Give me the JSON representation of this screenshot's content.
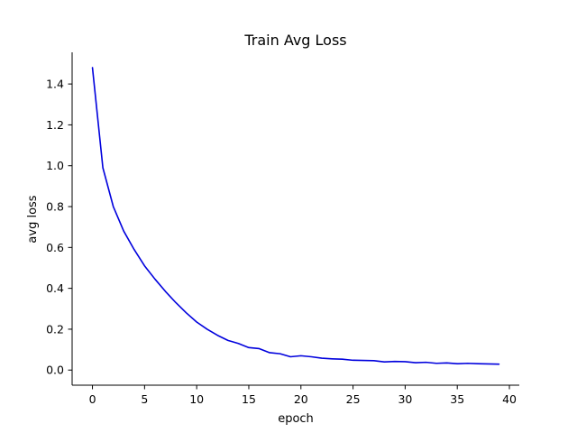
{
  "chart_data": {
    "type": "line",
    "title": "Train Avg Loss",
    "xlabel": "epoch",
    "ylabel": "avg loss",
    "xlim": [
      -1.95,
      40.95
    ],
    "ylim": [
      -0.074,
      1.555
    ],
    "xticks": [
      0,
      5,
      10,
      15,
      20,
      25,
      30,
      35,
      40
    ],
    "yticks": [
      0.0,
      0.2,
      0.4,
      0.6,
      0.8,
      1.0,
      1.2,
      1.4
    ],
    "grid": false,
    "series": [
      {
        "color": "#0000dd",
        "x": [
          0,
          1,
          2,
          3,
          4,
          5,
          6,
          7,
          8,
          9,
          10,
          11,
          12,
          13,
          14,
          15,
          16,
          17,
          18,
          19,
          20,
          21,
          22,
          23,
          24,
          25,
          26,
          27,
          28,
          29,
          30,
          31,
          32,
          33,
          34,
          35,
          36,
          37,
          38,
          39
        ],
        "values": [
          1.48,
          0.99,
          0.8,
          0.68,
          0.59,
          0.51,
          0.445,
          0.385,
          0.33,
          0.28,
          0.235,
          0.2,
          0.17,
          0.145,
          0.13,
          0.11,
          0.105,
          0.085,
          0.08,
          0.065,
          0.07,
          0.065,
          0.058,
          0.055,
          0.053,
          0.048,
          0.047,
          0.046,
          0.04,
          0.042,
          0.041,
          0.036,
          0.038,
          0.033,
          0.035,
          0.031,
          0.033,
          0.031,
          0.03,
          0.029
        ]
      }
    ]
  }
}
